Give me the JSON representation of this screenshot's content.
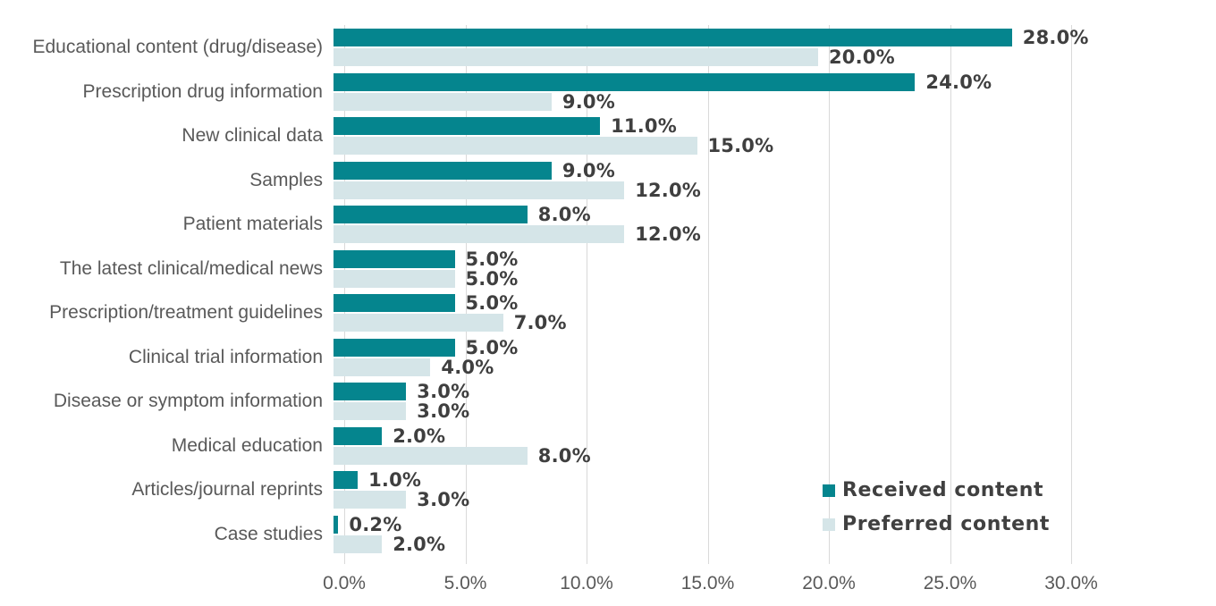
{
  "colors": {
    "received_bar": "#05858E",
    "preferred_bar": "#D5E5E8",
    "gridline": "#D9D9D9",
    "category_text": "#595959",
    "value_text": "#3F3F3F",
    "axis_text": "#595959",
    "legend_text": "#404040",
    "background": "#FFFFFF"
  },
  "legend": {
    "received_label": "Received content",
    "preferred_label": "Preferred content"
  },
  "chart_data": {
    "type": "bar",
    "orientation": "horizontal",
    "title": "",
    "xlabel": "",
    "ylabel": "",
    "grid": "vertical",
    "legend_position": "bottom-right-inside",
    "xlim": [
      0,
      36
    ],
    "x_ticks": {
      "values": [
        0,
        5,
        10,
        15,
        20,
        25,
        30
      ],
      "labels": [
        "0.0%",
        "5.0%",
        "10.0%",
        "15.0%",
        "20.0%",
        "25.0%",
        "30.0%"
      ]
    },
    "categories": [
      "Educational content (drug/disease)",
      "Prescription drug information",
      "New clinical data",
      "Samples",
      "Patient materials",
      "The latest clinical/medical news",
      "Prescription/treatment guidelines",
      "Clinical trial information",
      "Disease or symptom information",
      "Medical education",
      "Articles/journal reprints",
      "Case studies"
    ],
    "series": [
      {
        "name": "Received content",
        "color": "#05858E",
        "values": [
          28,
          24,
          11,
          9,
          8,
          5,
          5,
          5,
          3,
          2,
          1,
          0.2
        ],
        "display": [
          "28.0%",
          "24.0%",
          "11.0%",
          "9.0%",
          "8.0%",
          "5.0%",
          "5.0%",
          "5.0%",
          "3.0%",
          "2.0%",
          "1.0%",
          "0.2%"
        ]
      },
      {
        "name": "Preferred content",
        "color": "#D5E5E8",
        "values": [
          20,
          9,
          15,
          12,
          12,
          5,
          7,
          4,
          3,
          8,
          3,
          2
        ],
        "display": [
          "20.0%",
          "9.0%",
          "15.0%",
          "12.0%",
          "12.0%",
          "5.0%",
          "7.0%",
          "4.0%",
          "3.0%",
          "8.0%",
          "3.0%",
          "2.0%"
        ]
      }
    ]
  }
}
